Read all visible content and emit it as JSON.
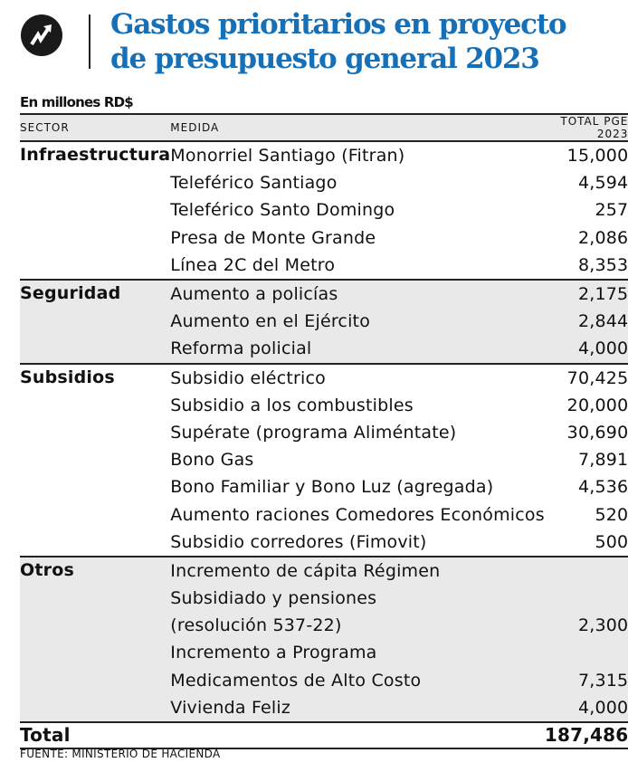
{
  "title": "Gastos prioritarios en proyecto de presupuesto general 2023",
  "subtitle": "En millones RD$",
  "headers": {
    "sector": "SECTOR",
    "medida": "MEDIDA",
    "total": "TOTAL PGE 2023"
  },
  "sections": [
    {
      "sector": "Infraestructura",
      "rows": [
        [
          "Monorriel Santiago (Fitran)",
          "15,000"
        ],
        [
          "Teleférico Santiago",
          "4,594"
        ],
        [
          "Teleférico Santo Domingo",
          "257"
        ],
        [
          "Presa de Monte Grande",
          "2,086"
        ],
        [
          "Línea 2C del Metro",
          "8,353"
        ]
      ]
    },
    {
      "sector": "Seguridad",
      "rows": [
        [
          "Aumento a policías",
          "2,175"
        ],
        [
          "Aumento en el Ejército",
          "2,844"
        ],
        [
          "Reforma policial",
          "4,000"
        ]
      ]
    },
    {
      "sector": "Subsidios",
      "rows": [
        [
          "Subsidio eléctrico",
          "70,425"
        ],
        [
          "Subsidio a los combustibles",
          "20,000"
        ],
        [
          "Supérate (programa Aliméntate)",
          "30,690"
        ],
        [
          "Bono Gas",
          "7,891"
        ],
        [
          "Bono Familiar y Bono Luz (agregada)",
          "4,536"
        ],
        [
          "Aumento raciones Comedores Económicos",
          "520"
        ],
        [
          "Subsidio corredores (Fimovit)",
          "500"
        ]
      ]
    },
    {
      "sector": "Otros",
      "rows": [
        [
          "Incremento de cápita Régimen",
          ""
        ],
        [
          "Subsidiado y pensiones",
          ""
        ],
        [
          "(resolución 537-22)",
          "2,300"
        ],
        [
          "Incremento a Programa",
          ""
        ],
        [
          "Medicamentos de Alto Costo",
          "7,315"
        ],
        [
          "Vivienda Feliz",
          "4,000"
        ]
      ]
    }
  ],
  "total": {
    "label": "Total",
    "value": "187,486"
  },
  "source": "FUENTE: MINISTERIO DE HACIENDA"
}
